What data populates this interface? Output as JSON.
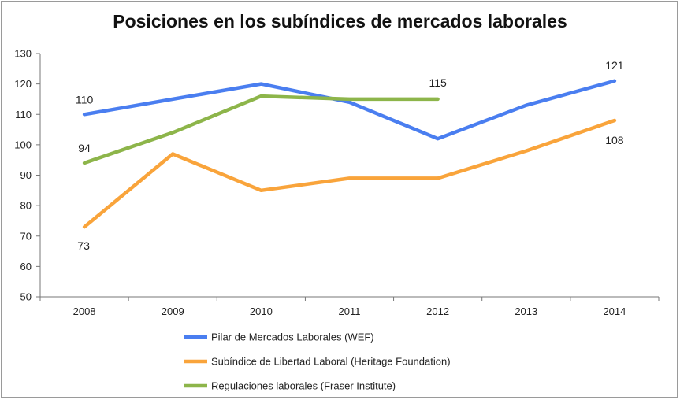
{
  "chart_data": {
    "type": "line",
    "title": "Posiciones en los subíndices de mercados laborales",
    "xlabel": "",
    "ylabel": "",
    "categories": [
      "2008",
      "2009",
      "2010",
      "2011",
      "2012",
      "2013",
      "2014"
    ],
    "ylim": [
      50,
      130
    ],
    "yticks": [
      "50",
      "60",
      "70",
      "80",
      "90",
      "100",
      "110",
      "120",
      "130"
    ],
    "grid": false,
    "legend_position": "bottom-left",
    "series": [
      {
        "name": "Pilar de Mercados Laborales (WEF)",
        "color": "#4a7ef0",
        "values": [
          110,
          115,
          120,
          114,
          102,
          113,
          121
        ]
      },
      {
        "name": "Subíndice de Libertad Laboral (Heritage Foundation)",
        "color": "#f9a43b",
        "values": [
          73,
          97,
          85,
          89,
          89,
          98,
          108
        ]
      },
      {
        "name": "Regulaciones laborales (Fraser Institute)",
        "color": "#8db54a",
        "values": [
          94,
          104,
          116,
          115,
          115,
          null,
          null
        ]
      }
    ],
    "annotations": [
      {
        "series": 0,
        "index": 0,
        "text": "110"
      },
      {
        "series": 0,
        "index": 6,
        "text": "121"
      },
      {
        "series": 1,
        "index": 0,
        "text": "73"
      },
      {
        "series": 1,
        "index": 6,
        "text": "108"
      },
      {
        "series": 2,
        "index": 0,
        "text": "94"
      },
      {
        "series": 2,
        "index": 4,
        "text": "115"
      }
    ]
  }
}
